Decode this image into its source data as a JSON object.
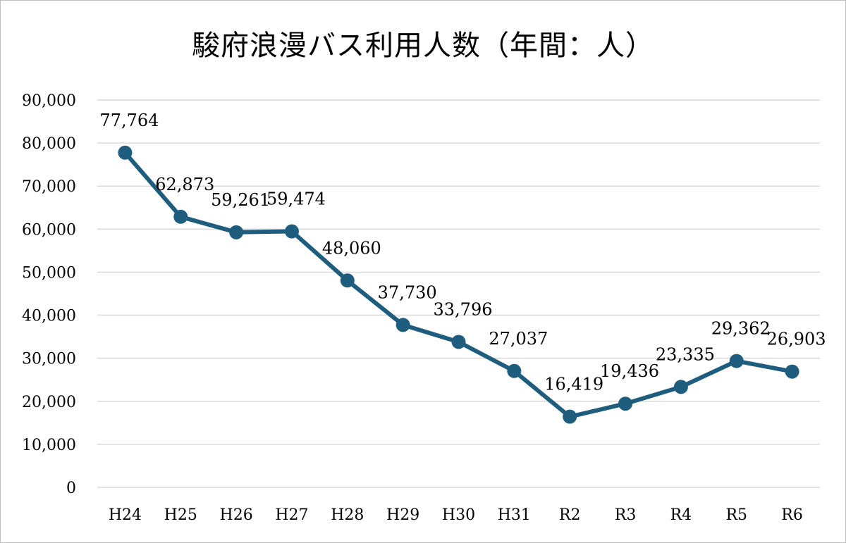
{
  "chart_data": {
    "type": "line",
    "title": "駿府浪漫バス利用人数（年間：人）",
    "xlabel": "",
    "ylabel": "",
    "categories": [
      "H24",
      "H25",
      "H26",
      "H27",
      "H28",
      "H29",
      "H30",
      "H31",
      "R2",
      "R3",
      "R4",
      "R5",
      "R6"
    ],
    "values": [
      77764,
      62873,
      59261,
      59474,
      48060,
      37730,
      33796,
      27037,
      16419,
      19436,
      23335,
      29362,
      26903
    ],
    "data_labels": [
      "77,764",
      "62,873",
      "59,261",
      "59,474",
      "48,060",
      "37,730",
      "33,796",
      "27,037",
      "16,419",
      "19,436",
      "23,335",
      "29,362",
      "26,903"
    ],
    "ylim": [
      0,
      90000
    ],
    "yticks": [
      0,
      10000,
      20000,
      30000,
      40000,
      50000,
      60000,
      70000,
      80000,
      90000
    ],
    "ytick_labels": [
      "0",
      "10,000",
      "20,000",
      "30,000",
      "40,000",
      "50,000",
      "60,000",
      "70,000",
      "80,000",
      "90,000"
    ],
    "grid": true,
    "legend": "none",
    "colors": {
      "line": "#1f5d7f",
      "marker": "#1f5d7f",
      "gridline": "#d9d9d9",
      "axis": "#d9d9d9",
      "text": "#000000"
    }
  }
}
